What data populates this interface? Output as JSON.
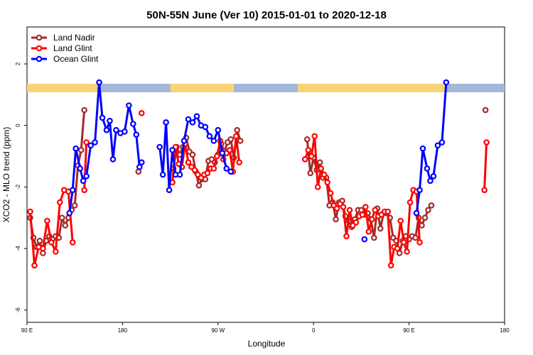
{
  "chart_data": {
    "type": "line",
    "title": "50N-55N June (Ver 10)   2015-01-01 to 2020-12-18",
    "xlabel": "Longitude",
    "ylabel": "XCO2 - MLO trend (ppm)",
    "x_ticks": [
      {
        "value": 90,
        "label": "90 E"
      },
      {
        "value": 180,
        "label": "180"
      },
      {
        "value": 270,
        "label": "90 W"
      },
      {
        "value": 360,
        "label": "0"
      },
      {
        "value": 450,
        "label": "90 E"
      },
      {
        "value": 540,
        "label": "180"
      }
    ],
    "y_ticks": [
      2,
      0,
      -2,
      -4,
      -6
    ],
    "xlim": [
      90,
      540
    ],
    "ylim": [
      -6.4,
      3.2
    ],
    "grid": false,
    "legend_position": "top-left",
    "colors": {
      "land_strip": "#f5d376",
      "ocean_strip": "#a3b7d9"
    },
    "series": [
      {
        "name": "Land Nadir",
        "color": "#a52a2a",
        "segments": [
          [
            [
              93,
              -3.0
            ],
            [
              96,
              -3.65
            ],
            [
              99,
              -3.95
            ],
            [
              102,
              -3.75
            ],
            [
              105,
              -4.15
            ],
            [
              108,
              -3.75
            ],
            [
              111,
              -3.6
            ],
            [
              114,
              -3.7
            ],
            [
              117,
              -3.6
            ],
            [
              120,
              -3.65
            ],
            [
              123,
              -3.0
            ],
            [
              126,
              -3.25
            ],
            [
              129,
              -3.0
            ],
            [
              132,
              -2.75
            ],
            [
              135,
              -2.6
            ],
            [
              138,
              -1.3
            ],
            [
              141,
              -0.8
            ],
            [
              144,
              0.5
            ]
          ],
          [
            [
              195,
              -1.5
            ]
          ],
          [
            [
              228,
              -1.4
            ],
            [
              231,
              -0.7
            ],
            [
              234,
              -0.95
            ],
            [
              237,
              -0.7
            ],
            [
              240,
              -0.4
            ],
            [
              243,
              -0.85
            ],
            [
              246,
              -0.95
            ],
            [
              249,
              -1.5
            ],
            [
              252,
              -1.95
            ],
            [
              255,
              -1.75
            ],
            [
              258,
              -1.75
            ],
            [
              261,
              -1.15
            ],
            [
              264,
              -1.1
            ],
            [
              267,
              -1.2
            ],
            [
              270,
              -0.95
            ],
            [
              273,
              -0.6
            ],
            [
              276,
              -0.85
            ],
            [
              279,
              -0.55
            ],
            [
              282,
              -0.45
            ],
            [
              285,
              -1.05
            ],
            [
              288,
              -0.15
            ],
            [
              291,
              -0.5
            ]
          ],
          [
            [
              354,
              -0.45
            ],
            [
              357,
              -1.55
            ],
            [
              360,
              -1.05
            ],
            [
              363,
              -1.45
            ],
            [
              366,
              -1.2
            ],
            [
              369,
              -1.7
            ],
            [
              372,
              -1.7
            ],
            [
              375,
              -2.6
            ],
            [
              378,
              -2.5
            ],
            [
              381,
              -3.05
            ],
            [
              384,
              -2.5
            ],
            [
              387,
              -2.45
            ],
            [
              390,
              -2.95
            ],
            [
              393,
              -3.1
            ],
            [
              396,
              -3.3
            ],
            [
              399,
              -3.05
            ],
            [
              402,
              -2.75
            ],
            [
              405,
              -2.75
            ],
            [
              408,
              -2.9
            ],
            [
              411,
              -2.85
            ],
            [
              414,
              -3.05
            ],
            [
              417,
              -3.65
            ],
            [
              420,
              -2.7
            ],
            [
              423,
              -3.35
            ],
            [
              426,
              -2.85
            ],
            [
              429,
              -2.85
            ],
            [
              432,
              -3.0
            ],
            [
              435,
              -3.65
            ],
            [
              438,
              -3.75
            ],
            [
              441,
              -4.15
            ],
            [
              444,
              -3.75
            ],
            [
              447,
              -3.6
            ],
            [
              450,
              -3.7
            ],
            [
              453,
              -3.6
            ],
            [
              456,
              -3.65
            ],
            [
              459,
              -3.0
            ],
            [
              462,
              -3.25
            ],
            [
              465,
              -3.0
            ],
            [
              468,
              -2.75
            ],
            [
              471,
              -2.6
            ]
          ],
          [
            [
              522,
              0.5
            ]
          ]
        ]
      },
      {
        "name": "Land Glint",
        "color": "#ff0000",
        "segments": [
          [
            [
              93,
              -2.8
            ],
            [
              97,
              -4.55
            ],
            [
              101,
              -3.95
            ],
            [
              105,
              -4.0
            ],
            [
              109,
              -3.1
            ],
            [
              113,
              -3.8
            ],
            [
              117,
              -4.1
            ],
            [
              121,
              -2.5
            ],
            [
              125,
              -2.1
            ],
            [
              129,
              -2.15
            ],
            [
              133,
              -3.8
            ]
          ],
          [
            [
              144,
              -2.1
            ],
            [
              146,
              -0.55
            ]
          ],
          [
            [
              198,
              0.4
            ]
          ],
          [
            [
              227,
              -1.85
            ],
            [
              230,
              -0.7
            ],
            [
              233,
              -1.25
            ],
            [
              236,
              -1.35
            ],
            [
              239,
              -0.6
            ],
            [
              242,
              -1.2
            ],
            [
              245,
              -1.35
            ],
            [
              248,
              -1.45
            ],
            [
              251,
              -1.6
            ],
            [
              254,
              -1.7
            ],
            [
              257,
              -1.6
            ],
            [
              260,
              -1.55
            ],
            [
              263,
              -1.4
            ],
            [
              266,
              -1.4
            ],
            [
              269,
              -1.0
            ],
            [
              272,
              -0.5
            ],
            [
              275,
              -1.1
            ],
            [
              278,
              -0.9
            ],
            [
              281,
              -0.8
            ],
            [
              284,
              -1.5
            ],
            [
              287,
              -0.35
            ],
            [
              290,
              -1.2
            ]
          ],
          [
            [
              352,
              -1.1
            ],
            [
              355,
              -0.8
            ],
            [
              358,
              -1.0
            ],
            [
              361,
              -0.35
            ],
            [
              364,
              -2.0
            ],
            [
              367,
              -1.4
            ],
            [
              370,
              -1.6
            ],
            [
              373,
              -1.85
            ],
            [
              376,
              -2.2
            ],
            [
              379,
              -2.6
            ],
            [
              382,
              -2.7
            ],
            [
              385,
              -2.55
            ],
            [
              388,
              -2.65
            ],
            [
              391,
              -3.6
            ],
            [
              394,
              -2.75
            ],
            [
              397,
              -3.25
            ],
            [
              400,
              -3.15
            ],
            [
              403,
              -2.95
            ],
            [
              406,
              -2.9
            ],
            [
              409,
              -2.65
            ],
            [
              412,
              -3.45
            ],
            [
              415,
              -3.05
            ],
            [
              418,
              -2.75
            ],
            [
              421,
              -2.95
            ],
            [
              424,
              -2.9
            ],
            [
              427,
              -2.8
            ],
            [
              430,
              -2.8
            ],
            [
              433,
              -4.55
            ],
            [
              436,
              -3.95
            ],
            [
              439,
              -4.0
            ],
            [
              442,
              -3.1
            ],
            [
              445,
              -3.8
            ],
            [
              448,
              -4.1
            ],
            [
              451,
              -2.5
            ],
            [
              454,
              -2.1
            ],
            [
              457,
              -2.15
            ],
            [
              460,
              -3.8
            ]
          ],
          [
            [
              521,
              -2.1
            ],
            [
              523,
              -0.55
            ]
          ]
        ]
      },
      {
        "name": "Ocean Glint",
        "color": "#0000ff",
        "segments": [
          [
            [
              130,
              -2.85
            ],
            [
              133,
              -2.1
            ],
            [
              136,
              -0.75
            ],
            [
              140,
              -1.4
            ],
            [
              143,
              -1.8
            ],
            [
              146,
              -1.65
            ],
            [
              150,
              -0.65
            ],
            [
              154,
              -0.55
            ],
            [
              158,
              1.4
            ],
            [
              161,
              0.25
            ],
            [
              165,
              -0.15
            ],
            [
              168,
              0.15
            ],
            [
              171,
              -1.1
            ],
            [
              174,
              -0.15
            ],
            [
              178,
              -0.25
            ],
            [
              182,
              -0.2
            ],
            [
              186,
              0.65
            ],
            [
              190,
              0.05
            ],
            [
              193,
              -0.3
            ],
            [
              196,
              -1.35
            ]
          ],
          [
            [
              198,
              -1.2
            ]
          ],
          [
            [
              215,
              -0.7
            ],
            [
              218,
              -1.6
            ],
            [
              221,
              0.1
            ],
            [
              224,
              -2.1
            ],
            [
              227,
              -0.8
            ],
            [
              230,
              -1.6
            ],
            [
              234,
              -1.6
            ],
            [
              238,
              -0.5
            ],
            [
              242,
              0.2
            ],
            [
              246,
              0.1
            ],
            [
              250,
              0.3
            ],
            [
              254,
              0.0
            ],
            [
              258,
              -0.05
            ],
            [
              262,
              -0.35
            ],
            [
              266,
              -0.5
            ],
            [
              270,
              -0.15
            ],
            [
              274,
              -0.9
            ],
            [
              278,
              -1.4
            ],
            [
              282,
              -1.5
            ]
          ],
          [
            [
              408,
              -3.7
            ]
          ],
          [
            [
              457,
              -2.85
            ],
            [
              460,
              -2.1
            ],
            [
              463,
              -0.75
            ],
            [
              467,
              -1.4
            ],
            [
              470,
              -1.8
            ],
            [
              473,
              -1.65
            ],
            [
              477,
              -0.65
            ],
            [
              481,
              -0.55
            ],
            [
              485,
              1.4
            ]
          ]
        ]
      }
    ]
  }
}
